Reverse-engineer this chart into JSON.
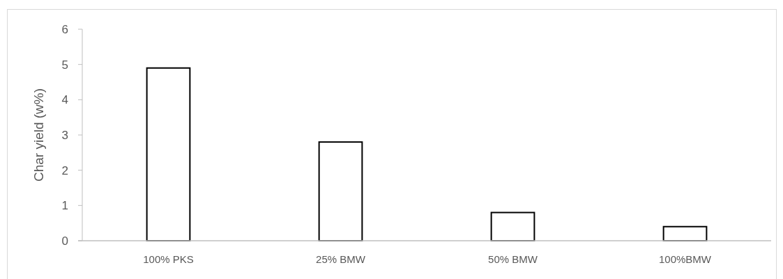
{
  "chart_data": {
    "type": "bar",
    "ylabel": "Char yield (w%)",
    "categories": [
      "100% PKS",
      "25% BMW",
      "50% BMW",
      "100%BMW"
    ],
    "values": [
      4.9,
      2.8,
      0.8,
      0.4
    ],
    "color": "#ffffff",
    "ylim": [
      0,
      6
    ],
    "yticks": [
      0,
      1,
      2,
      3,
      4,
      5,
      6
    ],
    "grid": false
  }
}
